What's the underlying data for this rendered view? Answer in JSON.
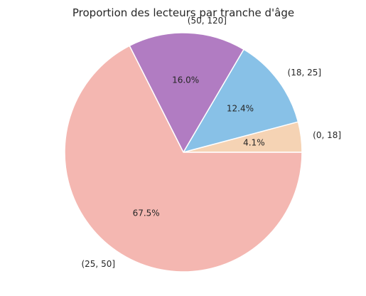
{
  "chart_data": {
    "type": "pie",
    "title": "Proportion des lecteurs par tranche d'âge",
    "categories": [
      "(0, 18]",
      "(18, 25]",
      "(50, 120]",
      "(25, 50]"
    ],
    "values": [
      4.1,
      12.4,
      16.0,
      67.5
    ],
    "pct_labels": [
      "4.1%",
      "12.4%",
      "16.0%",
      "67.5%"
    ],
    "colors": [
      "#f5d3b4",
      "#88c1e7",
      "#b17cc2",
      "#f4b7b1"
    ],
    "start_angle_deg": 0,
    "direction": "counterclockwise"
  }
}
